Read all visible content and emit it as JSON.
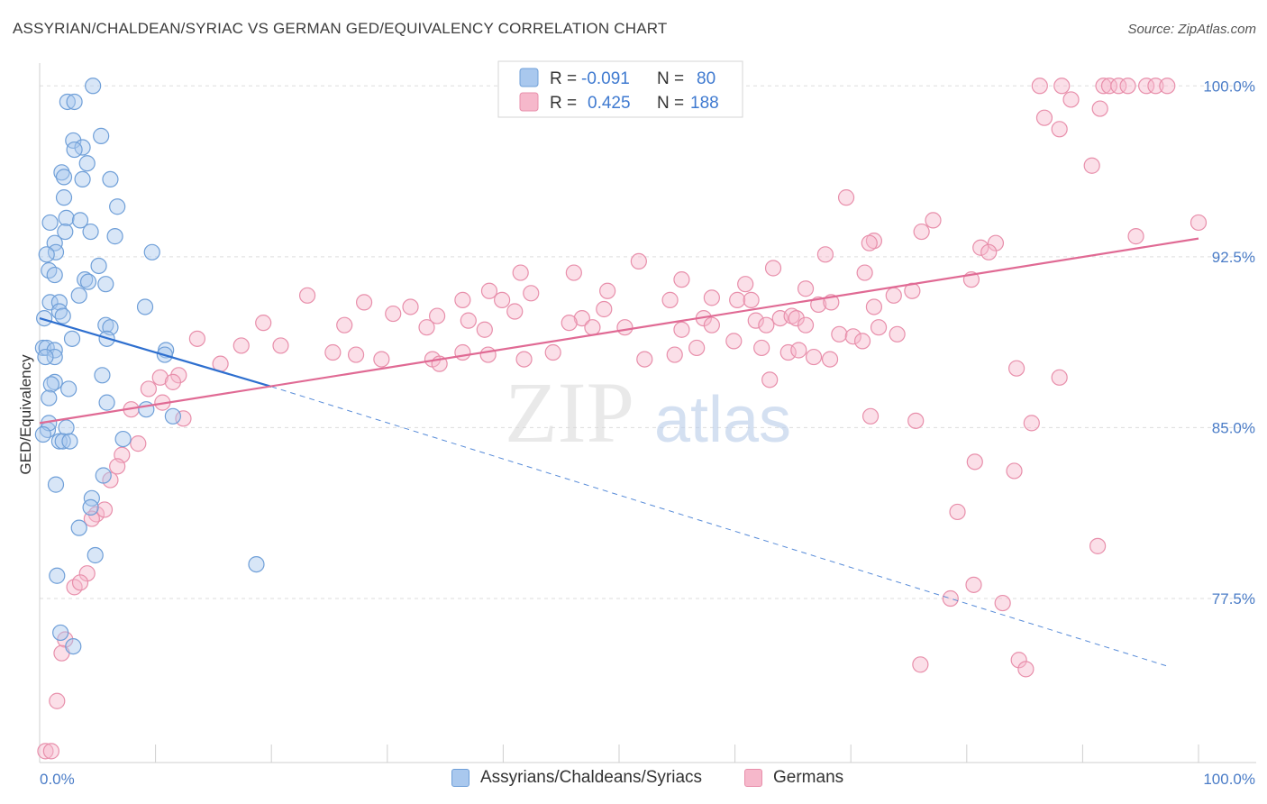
{
  "title": "ASSYRIAN/CHALDEAN/SYRIAC VS GERMAN GED/EQUIVALENCY CORRELATION CHART",
  "source": "Source: ZipAtlas.com",
  "watermark": {
    "part1": "ZIP",
    "part2": "atlas"
  },
  "colors": {
    "blue_fill": "#a9c8ee",
    "blue_stroke": "#6f9fd8",
    "blue_line": "#2e6fcf",
    "pink_fill": "#f6b8cb",
    "pink_stroke": "#e88fab",
    "pink_line": "#e06a94",
    "axis_label": "#4a7cc7",
    "grid": "#dddddd"
  },
  "legend_top": {
    "rows": [
      {
        "r_label": "R =",
        "r_value": "-0.091",
        "n_label": "N =",
        "n_value": "80"
      },
      {
        "r_label": "R =",
        "r_value": "0.425",
        "n_label": "N =",
        "n_value": "188"
      }
    ]
  },
  "chart_data": {
    "type": "scatter",
    "title": "ASSYRIAN/CHALDEAN/SYRIAC VS GERMAN GED/EQUIVALENCY CORRELATION CHART",
    "xlabel": "",
    "ylabel": "GED/Equivalency",
    "xlim": [
      0,
      100
    ],
    "ylim": [
      70.3,
      101.0
    ],
    "x_tick_labels": [
      "0.0%",
      "100.0%"
    ],
    "y_ticks": [
      77.5,
      85.0,
      92.5,
      100.0
    ],
    "y_tick_labels": [
      "77.5%",
      "85.0%",
      "92.5%",
      "100.0%"
    ],
    "grid": true,
    "legend_position": "bottom",
    "series": [
      {
        "name": "Assyrians/Chaldeans/Syriacs",
        "trend": {
          "x": [
            0.0,
            20.0
          ],
          "y": [
            89.8,
            86.8
          ],
          "dashed_extension_to": [
            97.5,
            74.5
          ]
        },
        "points": [
          [
            4.6,
            100.0
          ],
          [
            2.4,
            99.3
          ],
          [
            3.0,
            99.3
          ],
          [
            5.3,
            97.8
          ],
          [
            2.9,
            97.6
          ],
          [
            3.7,
            97.3
          ],
          [
            3.0,
            97.2
          ],
          [
            4.1,
            96.6
          ],
          [
            1.9,
            96.2
          ],
          [
            2.1,
            96.0
          ],
          [
            3.7,
            95.9
          ],
          [
            6.1,
            95.9
          ],
          [
            2.1,
            95.1
          ],
          [
            6.7,
            94.7
          ],
          [
            2.3,
            94.2
          ],
          [
            3.5,
            94.1
          ],
          [
            0.9,
            94.0
          ],
          [
            2.2,
            93.6
          ],
          [
            4.4,
            93.6
          ],
          [
            6.5,
            93.4
          ],
          [
            1.3,
            93.1
          ],
          [
            1.4,
            92.7
          ],
          [
            0.6,
            92.6
          ],
          [
            9.7,
            92.7
          ],
          [
            5.1,
            92.1
          ],
          [
            0.8,
            91.9
          ],
          [
            1.3,
            91.7
          ],
          [
            3.9,
            91.5
          ],
          [
            4.2,
            91.4
          ],
          [
            5.7,
            91.3
          ],
          [
            3.4,
            90.8
          ],
          [
            0.9,
            90.5
          ],
          [
            1.7,
            90.5
          ],
          [
            1.7,
            90.1
          ],
          [
            9.1,
            90.3
          ],
          [
            2.0,
            89.9
          ],
          [
            0.4,
            89.8
          ],
          [
            5.7,
            89.5
          ],
          [
            6.1,
            89.4
          ],
          [
            5.8,
            88.9
          ],
          [
            2.8,
            88.9
          ],
          [
            0.3,
            88.5
          ],
          [
            0.6,
            88.5
          ],
          [
            1.3,
            88.4
          ],
          [
            10.9,
            88.4
          ],
          [
            10.8,
            88.2
          ],
          [
            1.3,
            88.1
          ],
          [
            0.5,
            88.1
          ],
          [
            1.3,
            87.0
          ],
          [
            1.0,
            86.9
          ],
          [
            5.4,
            87.3
          ],
          [
            2.5,
            86.7
          ],
          [
            0.8,
            86.3
          ],
          [
            5.8,
            86.1
          ],
          [
            9.2,
            85.8
          ],
          [
            11.5,
            85.5
          ],
          [
            0.7,
            84.9
          ],
          [
            0.8,
            85.2
          ],
          [
            2.3,
            85.0
          ],
          [
            1.7,
            84.4
          ],
          [
            2.0,
            84.4
          ],
          [
            2.6,
            84.4
          ],
          [
            0.3,
            84.7
          ],
          [
            7.2,
            84.5
          ],
          [
            5.5,
            82.9
          ],
          [
            1.4,
            82.5
          ],
          [
            4.5,
            81.9
          ],
          [
            4.4,
            81.5
          ],
          [
            3.4,
            80.6
          ],
          [
            4.8,
            79.4
          ],
          [
            18.7,
            79.0
          ],
          [
            1.5,
            78.5
          ],
          [
            1.8,
            76.0
          ],
          [
            2.9,
            75.4
          ]
        ]
      },
      {
        "name": "Germans",
        "trend": {
          "x": [
            0.0,
            100.0
          ],
          "y": [
            85.2,
            93.3
          ]
        },
        "points": [
          [
            86.3,
            100.0
          ],
          [
            88.2,
            100.0
          ],
          [
            91.8,
            100.0
          ],
          [
            92.3,
            100.0
          ],
          [
            93.1,
            100.0
          ],
          [
            93.9,
            100.0
          ],
          [
            95.5,
            100.0
          ],
          [
            96.3,
            100.0
          ],
          [
            97.3,
            100.0
          ],
          [
            89.0,
            99.4
          ],
          [
            91.5,
            99.0
          ],
          [
            86.7,
            98.6
          ],
          [
            88.0,
            98.1
          ],
          [
            90.8,
            96.5
          ],
          [
            69.6,
            95.1
          ],
          [
            100.0,
            94.0
          ],
          [
            77.1,
            94.1
          ],
          [
            76.1,
            93.6
          ],
          [
            94.6,
            93.4
          ],
          [
            72.0,
            93.2
          ],
          [
            71.6,
            93.1
          ],
          [
            82.5,
            93.1
          ],
          [
            81.2,
            92.9
          ],
          [
            81.9,
            92.7
          ],
          [
            67.8,
            92.6
          ],
          [
            51.7,
            92.3
          ],
          [
            63.3,
            92.0
          ],
          [
            71.2,
            91.8
          ],
          [
            41.5,
            91.8
          ],
          [
            46.1,
            91.8
          ],
          [
            55.4,
            91.5
          ],
          [
            60.9,
            91.3
          ],
          [
            80.4,
            91.5
          ],
          [
            66.1,
            91.1
          ],
          [
            49.0,
            91.0
          ],
          [
            38.8,
            91.0
          ],
          [
            42.4,
            90.9
          ],
          [
            54.4,
            90.6
          ],
          [
            58.0,
            90.7
          ],
          [
            75.3,
            91.0
          ],
          [
            73.7,
            90.8
          ],
          [
            23.1,
            90.8
          ],
          [
            28.0,
            90.5
          ],
          [
            36.5,
            90.6
          ],
          [
            39.9,
            90.6
          ],
          [
            60.2,
            90.6
          ],
          [
            61.4,
            90.6
          ],
          [
            67.2,
            90.4
          ],
          [
            68.3,
            90.5
          ],
          [
            32.0,
            90.3
          ],
          [
            41.0,
            90.1
          ],
          [
            48.7,
            90.2
          ],
          [
            30.5,
            90.0
          ],
          [
            34.3,
            89.9
          ],
          [
            37.0,
            89.7
          ],
          [
            46.8,
            89.8
          ],
          [
            57.3,
            89.8
          ],
          [
            63.9,
            89.8
          ],
          [
            64.9,
            89.9
          ],
          [
            72.0,
            90.3
          ],
          [
            72.4,
            89.4
          ],
          [
            45.7,
            89.6
          ],
          [
            19.3,
            89.6
          ],
          [
            26.3,
            89.5
          ],
          [
            33.4,
            89.4
          ],
          [
            38.4,
            89.3
          ],
          [
            47.7,
            89.4
          ],
          [
            50.5,
            89.4
          ],
          [
            55.4,
            89.3
          ],
          [
            58.0,
            89.5
          ],
          [
            61.8,
            89.7
          ],
          [
            62.7,
            89.5
          ],
          [
            65.3,
            89.8
          ],
          [
            66.1,
            89.5
          ],
          [
            69.0,
            89.1
          ],
          [
            70.2,
            89.0
          ],
          [
            71.0,
            88.8
          ],
          [
            74.0,
            89.1
          ],
          [
            13.6,
            88.9
          ],
          [
            17.4,
            88.6
          ],
          [
            20.8,
            88.6
          ],
          [
            25.3,
            88.3
          ],
          [
            27.3,
            88.2
          ],
          [
            29.5,
            88.0
          ],
          [
            33.9,
            88.0
          ],
          [
            34.5,
            87.8
          ],
          [
            36.5,
            88.3
          ],
          [
            38.7,
            88.2
          ],
          [
            41.8,
            88.0
          ],
          [
            44.3,
            88.3
          ],
          [
            52.2,
            88.0
          ],
          [
            54.8,
            88.2
          ],
          [
            56.7,
            88.5
          ],
          [
            59.9,
            88.8
          ],
          [
            62.3,
            88.5
          ],
          [
            64.6,
            88.3
          ],
          [
            65.5,
            88.4
          ],
          [
            66.8,
            88.1
          ],
          [
            68.2,
            88.0
          ],
          [
            15.6,
            87.8
          ],
          [
            12.0,
            87.3
          ],
          [
            10.4,
            87.2
          ],
          [
            11.5,
            87.0
          ],
          [
            63.0,
            87.1
          ],
          [
            88.0,
            87.2
          ],
          [
            84.3,
            87.6
          ],
          [
            9.4,
            86.7
          ],
          [
            10.6,
            86.1
          ],
          [
            7.9,
            85.8
          ],
          [
            12.4,
            85.4
          ],
          [
            71.7,
            85.5
          ],
          [
            75.6,
            85.3
          ],
          [
            85.6,
            85.2
          ],
          [
            8.5,
            84.3
          ],
          [
            7.1,
            83.8
          ],
          [
            6.7,
            83.3
          ],
          [
            6.1,
            82.7
          ],
          [
            80.7,
            83.5
          ],
          [
            84.1,
            83.1
          ],
          [
            79.2,
            81.3
          ],
          [
            4.9,
            81.2
          ],
          [
            5.6,
            81.4
          ],
          [
            4.5,
            81.0
          ],
          [
            91.3,
            79.8
          ],
          [
            4.1,
            78.6
          ],
          [
            3.0,
            78.0
          ],
          [
            3.5,
            78.2
          ],
          [
            80.6,
            78.1
          ],
          [
            78.6,
            77.5
          ],
          [
            83.1,
            77.3
          ],
          [
            76.0,
            74.6
          ],
          [
            84.5,
            74.8
          ],
          [
            85.1,
            74.4
          ],
          [
            2.2,
            75.7
          ],
          [
            1.9,
            75.1
          ],
          [
            1.5,
            73.0
          ],
          [
            0.5,
            70.8
          ],
          [
            1.0,
            70.8
          ]
        ]
      }
    ]
  },
  "legend_bottom": {
    "items": [
      {
        "label": "Assyrians/Chaldeans/Syriacs"
      },
      {
        "label": "Germans"
      }
    ]
  }
}
